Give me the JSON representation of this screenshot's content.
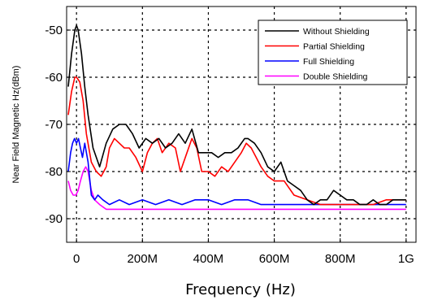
{
  "chart_data": {
    "type": "line",
    "title": "",
    "xlabel": "Frequency (Hz)",
    "ylabel": "Near Field Magnetic Hz(dBm)",
    "xlim": [
      -30000000,
      1030000000
    ],
    "ylim": [
      -95,
      -45
    ],
    "x_ticks": [
      0,
      200000000,
      400000000,
      600000000,
      800000000,
      1000000000
    ],
    "x_tick_labels": [
      "0",
      "200M",
      "400M",
      "600M",
      "800M",
      "1G"
    ],
    "y_ticks": [
      -90,
      -80,
      -70,
      -60,
      -50
    ],
    "y_tick_labels": [
      "-90",
      "-80",
      "-70",
      "-60",
      "-50"
    ],
    "grid": "dashed",
    "legend_position": "top-right",
    "series": [
      {
        "name": "Without Shielding",
        "color": "#000000",
        "x": [
          -25000000,
          -15000000,
          -5000000,
          0,
          5000000,
          15000000,
          25000000,
          35000000,
          50000000,
          70000000,
          90000000,
          110000000,
          130000000,
          150000000,
          170000000,
          190000000,
          210000000,
          230000000,
          250000000,
          270000000,
          290000000,
          310000000,
          330000000,
          350000000,
          370000000,
          390000000,
          410000000,
          430000000,
          450000000,
          470000000,
          490000000,
          510000000,
          520000000,
          540000000,
          560000000,
          580000000,
          600000000,
          620000000,
          640000000,
          660000000,
          680000000,
          700000000,
          720000000,
          740000000,
          760000000,
          780000000,
          800000000,
          820000000,
          840000000,
          860000000,
          880000000,
          900000000,
          920000000,
          940000000,
          960000000,
          980000000,
          1000000000
        ],
        "y": [
          -62,
          -55,
          -50,
          -49,
          -50,
          -55,
          -62,
          -68,
          -75,
          -79,
          -74,
          -71,
          -70,
          -70,
          -72,
          -75,
          -73,
          -74,
          -73,
          -75,
          -74,
          -72,
          -74,
          -71,
          -76,
          -76,
          -76,
          -77,
          -76,
          -76,
          -75,
          -73,
          -73,
          -74,
          -76,
          -79,
          -80,
          -78,
          -82,
          -83,
          -84,
          -86,
          -87,
          -86,
          -86,
          -84,
          -85,
          -86,
          -86,
          -87,
          -87,
          -86,
          -87,
          -87,
          -86,
          -86,
          -86
        ]
      },
      {
        "name": "Partial Shielding",
        "color": "#ff0000",
        "x": [
          -25000000,
          -15000000,
          -5000000,
          0,
          10000000,
          20000000,
          30000000,
          45000000,
          60000000,
          75000000,
          90000000,
          100000000,
          115000000,
          130000000,
          145000000,
          160000000,
          180000000,
          200000000,
          215000000,
          230000000,
          245000000,
          260000000,
          280000000,
          300000000,
          315000000,
          335000000,
          350000000,
          365000000,
          380000000,
          400000000,
          420000000,
          440000000,
          460000000,
          480000000,
          500000000,
          515000000,
          530000000,
          545000000,
          560000000,
          580000000,
          600000000,
          630000000,
          660000000,
          700000000,
          740000000,
          780000000,
          820000000,
          860000000,
          900000000,
          940000000,
          980000000,
          1000000000
        ],
        "y": [
          -68,
          -63,
          -60,
          -60,
          -61,
          -65,
          -72,
          -78,
          -80,
          -81,
          -79,
          -75,
          -73,
          -74,
          -75,
          -75,
          -77,
          -80,
          -76,
          -74,
          -73,
          -76,
          -74,
          -75,
          -80,
          -76,
          -73,
          -75,
          -80,
          -80,
          -81,
          -79,
          -80,
          -78,
          -76,
          -74,
          -75,
          -77,
          -79,
          -81,
          -82,
          -82,
          -85,
          -86,
          -87,
          -87,
          -87,
          -87,
          -87,
          -86,
          -86,
          -86
        ]
      },
      {
        "name": "Full Shielding",
        "color": "#0000ff",
        "x": [
          -25000000,
          -18000000,
          -12000000,
          -6000000,
          0,
          6000000,
          12000000,
          18000000,
          25000000,
          35000000,
          45000000,
          55000000,
          65000000,
          80000000,
          100000000,
          130000000,
          160000000,
          200000000,
          240000000,
          280000000,
          320000000,
          360000000,
          400000000,
          440000000,
          480000000,
          520000000,
          560000000,
          600000000,
          640000000,
          680000000,
          720000000,
          760000000,
          800000000,
          840000000,
          880000000,
          920000000,
          960000000,
          1000000000
        ],
        "y": [
          -80,
          -76,
          -74,
          -73,
          -74,
          -73,
          -75,
          -77,
          -74,
          -78,
          -85,
          -86,
          -85,
          -86,
          -87,
          -86,
          -87,
          -86,
          -87,
          -86,
          -87,
          -86,
          -86,
          -87,
          -86,
          -86,
          -87,
          -87,
          -87,
          -87,
          -87,
          -87,
          -87,
          -87,
          -87,
          -87,
          -87,
          -87
        ]
      },
      {
        "name": "Double Shielding",
        "color": "#ff00ff",
        "x": [
          -25000000,
          -18000000,
          -10000000,
          -2000000,
          5000000,
          12000000,
          20000000,
          28000000,
          35000000,
          45000000,
          55000000,
          70000000,
          90000000,
          120000000,
          160000000,
          200000000,
          250000000,
          300000000,
          350000000,
          400000000,
          450000000,
          500000000,
          550000000,
          600000000,
          650000000,
          700000000,
          750000000,
          800000000,
          850000000,
          900000000,
          950000000,
          1000000000
        ],
        "y": [
          -82,
          -84,
          -85,
          -85,
          -84,
          -82,
          -80,
          -79,
          -80,
          -84,
          -86,
          -87,
          -88,
          -88,
          -88,
          -88,
          -88,
          -88,
          -88,
          -88,
          -88,
          -88,
          -88,
          -88,
          -88,
          -88,
          -88,
          -88,
          -88,
          -88,
          -88,
          -88
        ]
      }
    ]
  }
}
